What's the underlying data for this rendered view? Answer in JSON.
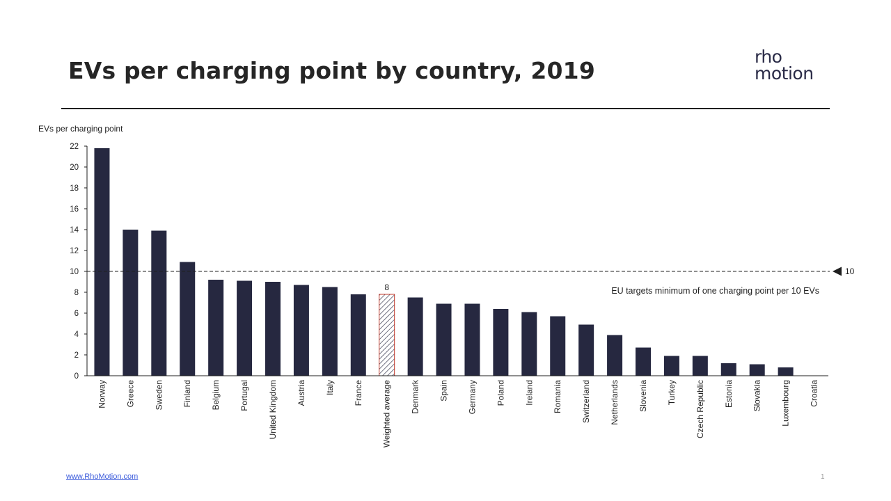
{
  "slide": {
    "title": "EVs per charging point by country, 2019",
    "logo_line1": "rho",
    "logo_line2": "motion",
    "footer_link": "www.RhoMotion.com",
    "page_number": "1"
  },
  "chart_data": {
    "type": "bar",
    "title": "",
    "ylabel": "EVs per charging point",
    "xlabel": "",
    "ylim": [
      0,
      22
    ],
    "yticks": [
      0,
      2,
      4,
      6,
      8,
      10,
      12,
      14,
      16,
      18,
      20,
      22
    ],
    "categories": [
      "Norway",
      "Greece",
      "Sweden",
      "Finland",
      "Belgium",
      "Portugal",
      "United Kingdom",
      "Austria",
      "Italy",
      "France",
      "Weighted average",
      "Denmark",
      "Spain",
      "Germany",
      "Poland",
      "Ireland",
      "Romania",
      "Switzerland",
      "Netherlands",
      "Slovenia",
      "Turkey",
      "Czech Republic",
      "Estonia",
      "Slovakia",
      "Luxembourg",
      "Croatia"
    ],
    "values": [
      21.8,
      14.0,
      13.9,
      10.9,
      9.2,
      9.1,
      9.0,
      8.7,
      8.5,
      7.8,
      7.8,
      7.5,
      6.9,
      6.9,
      6.4,
      6.1,
      5.7,
      4.9,
      3.9,
      2.7,
      1.9,
      1.9,
      1.2,
      1.1,
      0.8,
      0.0
    ],
    "highlight": {
      "category": "Weighted average",
      "label": "8",
      "style": "hatched"
    },
    "reference_line": {
      "value": 10,
      "label": "10",
      "annotation": "EU targets minimum of one charging point per 10 EVs",
      "style": "dashed"
    },
    "grid": false,
    "legend": "none",
    "colors": {
      "bar": "#262840",
      "highlight_stroke": "#c0392b",
      "axis": "#1f1f1f"
    }
  }
}
